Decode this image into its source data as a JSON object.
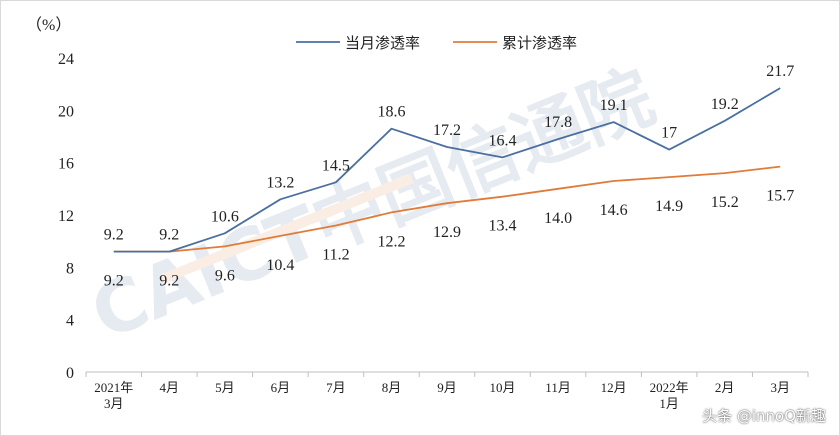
{
  "chart_data": {
    "type": "line",
    "y_unit_label": "（%）",
    "categories": [
      [
        "2021年",
        "3月"
      ],
      [
        "4月"
      ],
      [
        "5月"
      ],
      [
        "6月"
      ],
      [
        "7月"
      ],
      [
        "8月"
      ],
      [
        "9月"
      ],
      [
        "10月"
      ],
      [
        "11月"
      ],
      [
        "12月"
      ],
      [
        "2022年",
        "1月"
      ],
      [
        "2月"
      ],
      [
        "3月"
      ]
    ],
    "ylim": [
      0,
      24
    ],
    "yticks": [
      0,
      4,
      8,
      12,
      16,
      20,
      24
    ],
    "grid": false,
    "legend_position": "top-center",
    "series": [
      {
        "name": "当月渗透率",
        "color": "#4a6fa0",
        "values": [
          9.2,
          9.2,
          10.6,
          13.2,
          14.5,
          18.6,
          17.2,
          16.4,
          17.8,
          19.1,
          17,
          19.2,
          21.7
        ],
        "labels": [
          "9.2",
          "9.2",
          "10.6",
          "13.2",
          "14.5",
          "18.6",
          "17.2",
          "16.4",
          "17.8",
          "19.1",
          "17",
          "19.2",
          "21.7"
        ],
        "label_position": "above"
      },
      {
        "name": "累计渗透率",
        "color": "#e07b39",
        "values": [
          9.2,
          9.2,
          9.6,
          10.4,
          11.2,
          12.2,
          12.9,
          13.4,
          14.0,
          14.6,
          14.9,
          15.2,
          15.7
        ],
        "labels": [
          "9.2",
          "9.2",
          "9.6",
          "10.4",
          "11.2",
          "12.2",
          "12.9",
          "13.4",
          "14.0",
          "14.6",
          "14.9",
          "15.2",
          "15.7"
        ],
        "label_position": "below"
      }
    ]
  },
  "watermark": {
    "logo_text": "CAICT中国信通院",
    "caption": "头条 @innoQ新趣"
  }
}
